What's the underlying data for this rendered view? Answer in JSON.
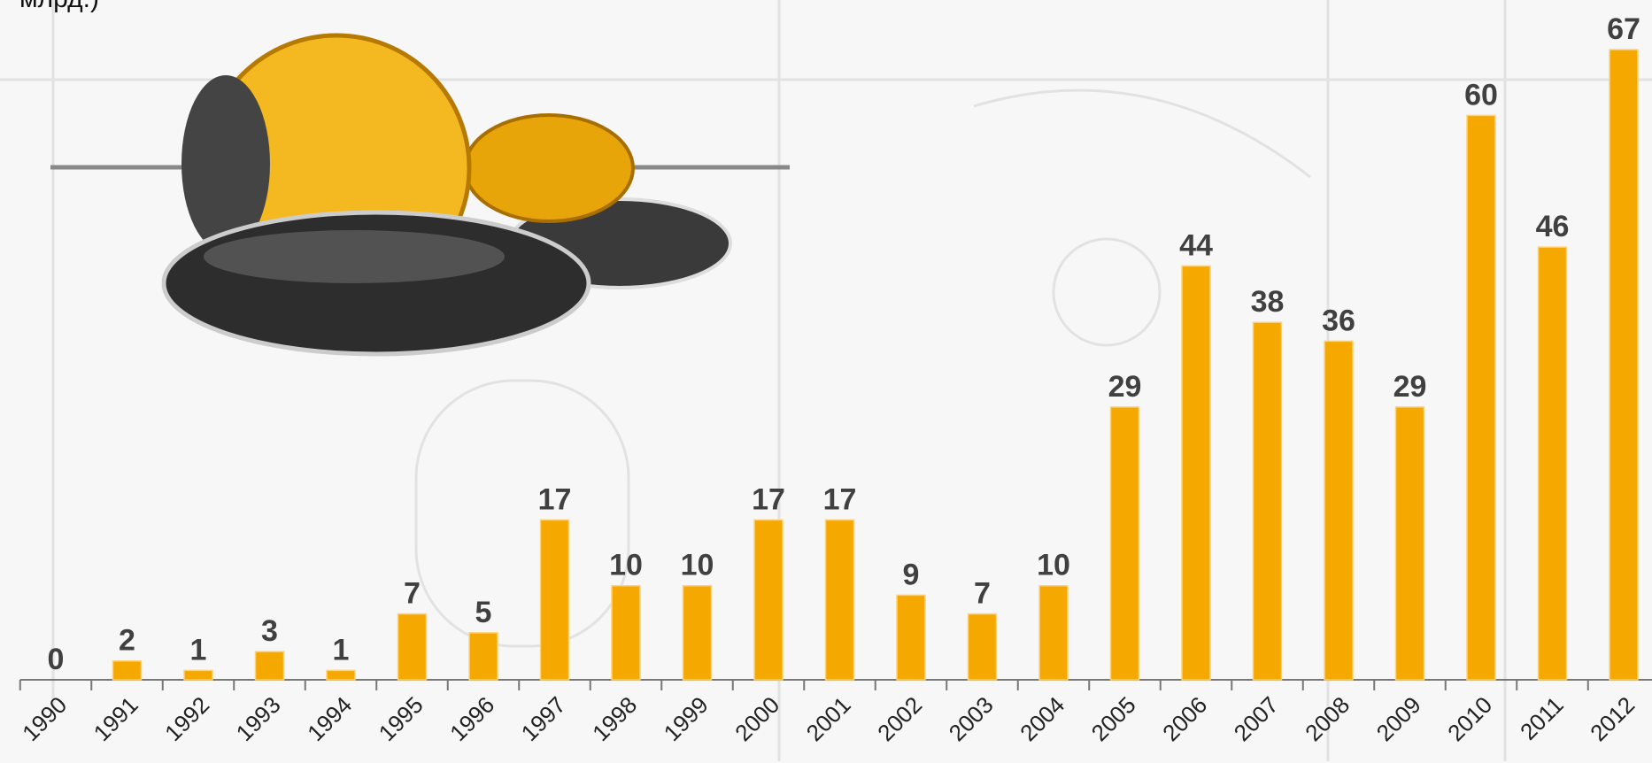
{
  "chart_data": {
    "type": "bar",
    "title": "млрд.)",
    "categories": [
      "1990",
      "1991",
      "1992",
      "1993",
      "1994",
      "1995",
      "1996",
      "1997",
      "1998",
      "1999",
      "2000",
      "2001",
      "2002",
      "2003",
      "2004",
      "2005",
      "2006",
      "2007",
      "2008",
      "2009",
      "2010",
      "2011",
      "2012"
    ],
    "values": [
      0,
      2,
      1,
      3,
      1,
      7,
      5,
      17,
      10,
      10,
      17,
      17,
      9,
      7,
      10,
      29,
      44,
      38,
      36,
      29,
      60,
      46,
      67
    ],
    "color": "#f5a800"
  }
}
